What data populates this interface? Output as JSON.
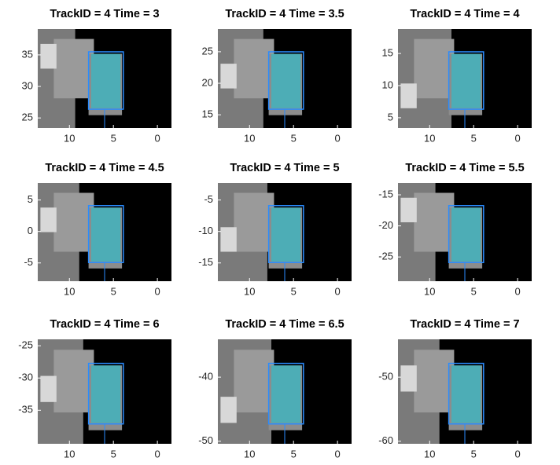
{
  "chart_data": [
    {
      "type": "image",
      "title": "TrackID = 4 Time = 3",
      "xlim": [
        13.6,
        -1.6
      ],
      "ylim": [
        23.4,
        39.1
      ],
      "xticks": [
        10,
        5,
        0
      ],
      "yticks": [
        25,
        30,
        35
      ]
    },
    {
      "type": "image",
      "title": "TrackID = 4 Time = 3.5",
      "xlim": [
        13.6,
        -1.6
      ],
      "ylim": [
        12.9,
        28.6
      ],
      "xticks": [
        10,
        5,
        0
      ],
      "yticks": [
        15,
        20,
        25
      ]
    },
    {
      "type": "image",
      "title": "TrackID = 4 Time = 4",
      "xlim": [
        13.6,
        -1.6
      ],
      "ylim": [
        3.4,
        18.8
      ],
      "xticks": [
        10,
        5,
        0
      ],
      "yticks": [
        5,
        10,
        15
      ]
    },
    {
      "type": "image",
      "title": "TrackID = 4 Time = 4.5",
      "xlim": [
        13.6,
        -1.6
      ],
      "ylim": [
        -7.9,
        7.7
      ],
      "xticks": [
        10,
        5,
        0
      ],
      "yticks": [
        -5,
        0,
        5
      ]
    },
    {
      "type": "image",
      "title": "TrackID = 4 Time = 5",
      "xlim": [
        13.6,
        -1.6
      ],
      "ylim": [
        -17.9,
        -2.3
      ],
      "xticks": [
        10,
        5,
        0
      ],
      "yticks": [
        -15,
        -10,
        -5
      ]
    },
    {
      "type": "image",
      "title": "TrackID = 4 Time = 5.5",
      "xlim": [
        13.6,
        -1.6
      ],
      "ylim": [
        -28.9,
        -13.1
      ],
      "xticks": [
        10,
        5,
        0
      ],
      "yticks": [
        -25,
        -20,
        -15
      ]
    },
    {
      "type": "image",
      "title": "TrackID = 4 Time = 6",
      "xlim": [
        13.6,
        -1.6
      ],
      "ylim": [
        -40.2,
        -24
      ],
      "xticks": [
        10,
        5,
        0
      ],
      "yticks": [
        -35,
        -30,
        -25
      ]
    },
    {
      "type": "image",
      "title": "TrackID = 4 Time = 6.5",
      "xlim": [
        13.6,
        -1.6
      ],
      "ylim": [
        -50.4,
        -34.1
      ],
      "xticks": [
        10,
        5,
        0
      ],
      "yticks": [
        -50,
        -40
      ]
    },
    {
      "type": "image",
      "title": "TrackID = 4 Time = 7",
      "xlim": [
        13.6,
        -1.6
      ],
      "ylim": [
        -60.4,
        -44.1
      ],
      "xticks": [
        10,
        5,
        0
      ],
      "yticks": [
        -60,
        -50
      ]
    }
  ]
}
